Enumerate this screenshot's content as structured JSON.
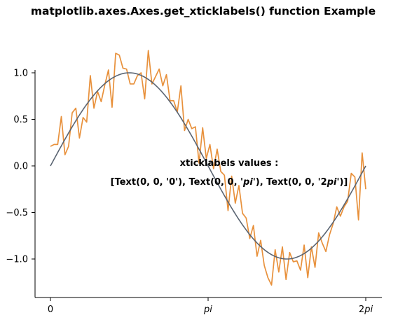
{
  "chart_data": {
    "type": "line",
    "title": "matplotlib.axes.Axes.get_xticklabels() function Example",
    "xlabel": "",
    "ylabel": "",
    "xlim": [
      -0.6,
      6.6
    ],
    "ylim": [
      -1.4,
      1.5
    ],
    "x_ticks": [
      {
        "value": 0,
        "label": "0",
        "italic": false
      },
      {
        "value": 3.14159,
        "label": "pi",
        "italic": true
      },
      {
        "value": 6.28318,
        "label": "2pi",
        "italic_suffix": "pi",
        "prefix": "2",
        "italic": true
      }
    ],
    "y_ticks": [
      {
        "value": 1.0,
        "label": "1.0"
      },
      {
        "value": 0.5,
        "label": "0.5"
      },
      {
        "value": 0.0,
        "label": "0.0"
      },
      {
        "value": -0.5,
        "label": "−0.5"
      },
      {
        "value": -1.0,
        "label": "−1.0"
      }
    ],
    "grid": false,
    "series": [
      {
        "color": "#e8913c",
        "x_start": 0,
        "x_end": 6.28318,
        "values": [
          0.21,
          0.23,
          0.23,
          0.53,
          0.12,
          0.21,
          0.57,
          0.62,
          0.3,
          0.52,
          0.47,
          0.97,
          0.62,
          0.8,
          0.69,
          0.87,
          1.03,
          0.63,
          1.21,
          1.19,
          1.05,
          1.04,
          0.88,
          0.88,
          0.97,
          1.0,
          0.72,
          1.24,
          0.88,
          0.96,
          1.04,
          0.86,
          0.98,
          0.7,
          0.7,
          0.58,
          0.86,
          0.38,
          0.5,
          0.4,
          0.42,
          0.03,
          0.41,
          0.08,
          0.23,
          -0.03,
          0.18,
          -0.06,
          -0.1,
          -0.48,
          -0.11,
          -0.4,
          -0.21,
          -0.51,
          -0.56,
          -0.78,
          -0.64,
          -0.97,
          -0.8,
          -1.07,
          -1.2,
          -1.28,
          -0.9,
          -1.14,
          -0.87,
          -1.22,
          -0.93,
          -1.03,
          -1.02,
          -1.12,
          -0.85,
          -1.2,
          -0.87,
          -1.09,
          -0.72,
          -0.83,
          -0.92,
          -0.74,
          -0.62,
          -0.44,
          -0.54,
          -0.44,
          -0.38,
          -0.08,
          -0.12,
          -0.58,
          0.14,
          -0.25
        ],
        "name": ""
      },
      {
        "color": "#5a6472",
        "function": "sin",
        "x_start": 0,
        "x_end": 6.28318,
        "name": ""
      }
    ],
    "annotation": {
      "line1": "xticklabels values :",
      "line2_parts": [
        {
          "text": "[Text(0, 0, '0'), Text(0, 0, '",
          "italic": false
        },
        {
          "text": "pi",
          "italic": true
        },
        {
          "text": "'), Text(0, 0, '2",
          "italic": false
        },
        {
          "text": "pi",
          "italic": true
        },
        {
          "text": "')]",
          "italic": false
        }
      ]
    }
  }
}
